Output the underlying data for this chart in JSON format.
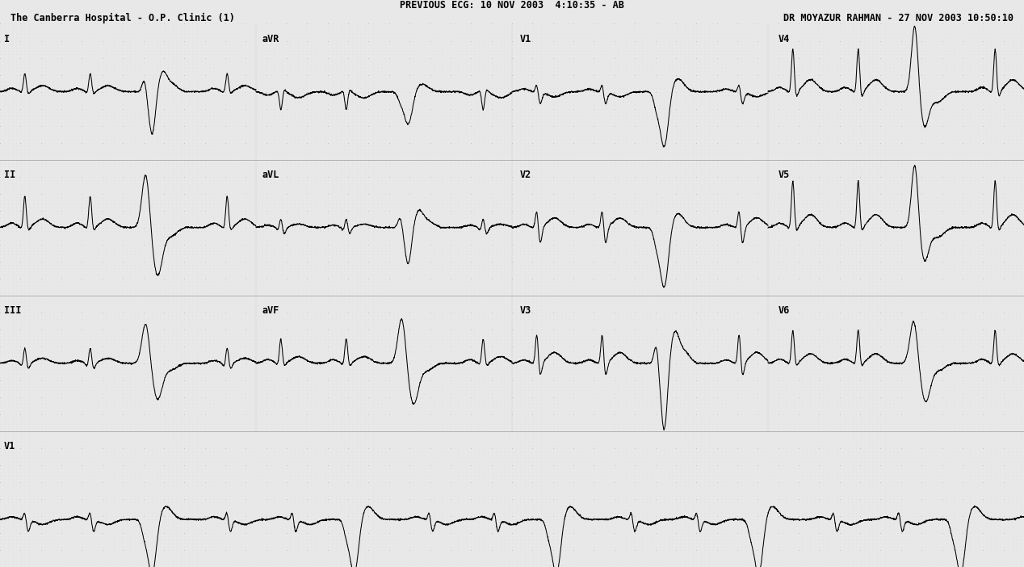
{
  "header_left_top": "PREVIOUS ECG: 10 NOV 2003  4:10:35 - AB",
  "header_left_bottom": "The Canberra Hospital - O.P. Clinic (1)",
  "header_right": "DR MOYAZUR RAHMAN - 27 NOV 2003 10:50:10",
  "bg_color": "#e8e8e8",
  "grid_dot_color": "#aaaaaa",
  "grid_major_dot_color": "#888888",
  "trace_color": "#000000",
  "text_color": "#000000",
  "figsize": [
    12.68,
    7.02
  ],
  "dpi": 100,
  "sample_rate": 500,
  "header_fontsize": 8.5,
  "label_fontsize": 8.5
}
